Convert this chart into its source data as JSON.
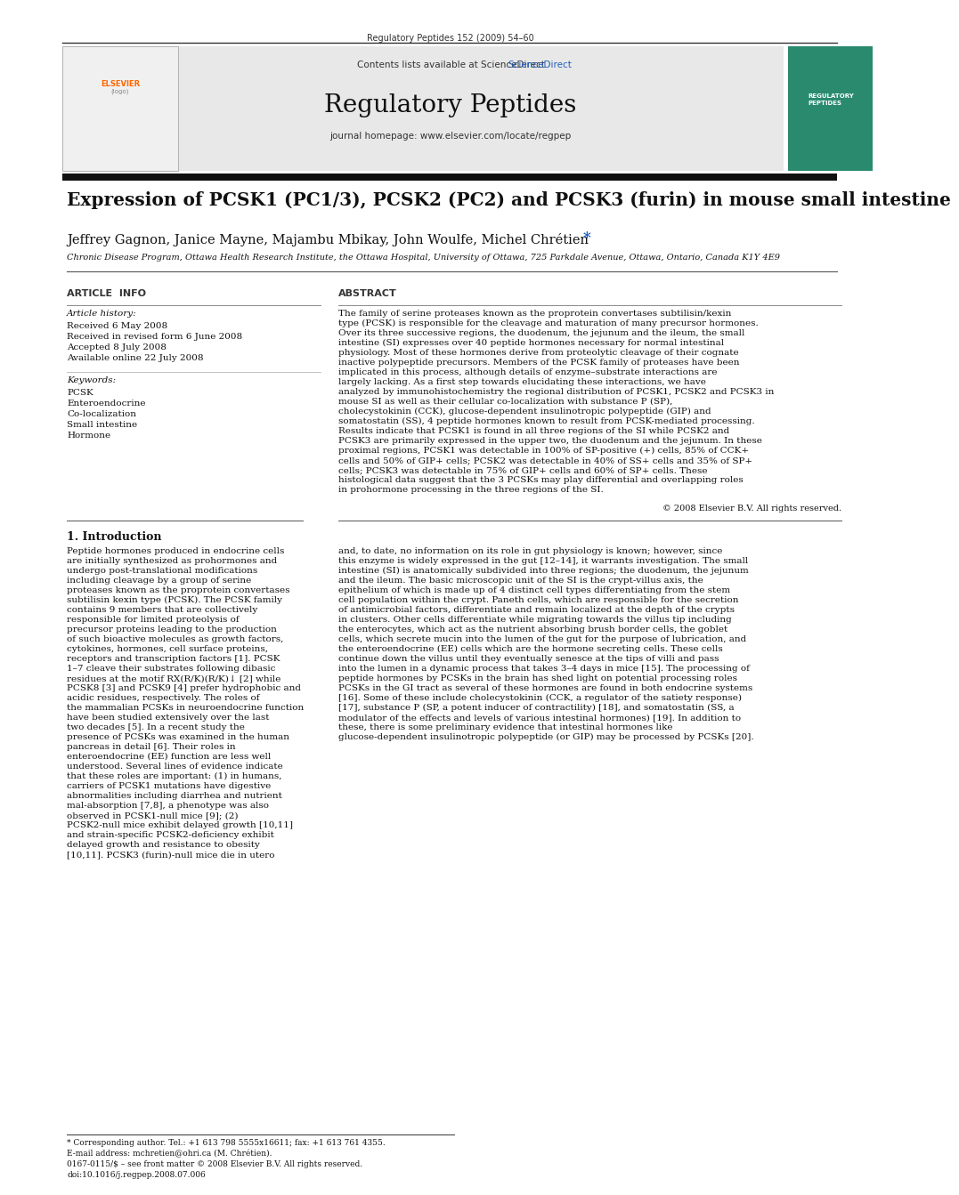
{
  "page_bg": "#ffffff",
  "header_journal": "Regulatory Peptides 152 (2009) 54–60",
  "header_journal_color": "#000000",
  "header_bg": "#e8e8e8",
  "contents_text": "Contents lists available at ",
  "sciencedirect_text": "ScienceDirect",
  "sciencedirect_color": "#2060c0",
  "journal_name": "Regulatory Peptides",
  "journal_homepage": "journal homepage: www.elsevier.com/locate/regpep",
  "title": "Expression of PCSK1 (PC1/3), PCSK2 (PC2) and PCSK3 (furin) in mouse small intestine",
  "authors": "Jeffrey Gagnon, Janice Mayne, Majambu Mbikay, John Woulfe, Michel Chrétien",
  "asterisk_color": "#2060c0",
  "affiliation": "Chronic Disease Program, Ottawa Health Research Institute, the Ottawa Hospital, University of Ottawa, 725 Parkdale Avenue, Ottawa, Ontario, Canada K1Y 4E9",
  "article_info_header": "ARTICLE  INFO",
  "abstract_header": "ABSTRACT",
  "article_history_label": "Article history:",
  "received": "Received 6 May 2008",
  "revised": "Received in revised form 6 June 2008",
  "accepted": "Accepted 8 July 2008",
  "available": "Available online 22 July 2008",
  "keywords_label": "Keywords:",
  "keywords": [
    "PCSK",
    "Enteroendocrine",
    "Co-localization",
    "Small intestine",
    "Hormone"
  ],
  "abstract_text": "The family of serine proteases known as the proprotein convertases subtilisin/kexin type (PCSK) is responsible for the cleavage and maturation of many precursor hormones. Over its three successive regions, the duodenum, the jejunum and the ileum, the small intestine (SI) expresses over 40 peptide hormones necessary for normal intestinal physiology. Most of these hormones derive from proteolytic cleavage of their cognate inactive polypeptide precursors. Members of the PCSK family of proteases have been implicated in this process, although details of enzyme–substrate interactions are largely lacking. As a first step towards elucidating these interactions, we have analyzed by immunohistochemistry the regional distribution of PCSK1, PCSK2 and PCSK3 in mouse SI as well as their cellular co-localization with substance P (SP), cholecystokinin (CCK), glucose-dependent insulinotropic polypeptide (GIP) and somatostatin (SS), 4 peptide hormones known to result from PCSK-mediated processing. Results indicate that PCSK1 is found in all three regions of the SI while PCSK2 and PCSK3 are primarily expressed in the upper two, the duodenum and the jejunum. In these proximal regions, PCSK1 was detectable in 100% of SP-positive (+) cells, 85% of CCK+ cells and 50% of GIP+ cells; PCSK2 was detectable in 40% of SS+ cells and 35% of SP+ cells; PCSK3 was detectable in 75% of GIP+ cells and 60% of SP+ cells. These histological data suggest that the 3 PCSKs may play differential and overlapping roles in prohormone processing in the three regions of the SI.",
  "copyright": "© 2008 Elsevier B.V. All rights reserved.",
  "intro_header": "1. Introduction",
  "intro_col1": "Peptide hormones produced in endocrine cells are initially synthesized as prohormones and undergo post-translational modifications including cleavage by a group of serine proteases known as the proprotein convertases subtilisin kexin type (PCSK). The PCSK family contains 9 members that are collectively responsible for limited proteolysis of precursor proteins leading to the production of such bioactive molecules as growth factors, cytokines, hormones, cell surface proteins, receptors and transcription factors [1]. PCSK 1–7 cleave their substrates following dibasic residues at the motif RX(R/K)(R/K)↓ [2] while PCSK8 [3] and PCSK9 [4] prefer hydrophobic and acidic residues, respectively. The roles of the mammalian PCSKs in neuroendocrine function have been studied extensively over the last two decades [5].\n    In a recent study the presence of PCSKs was examined in the human pancreas in detail [6]. Their roles in enteroendocrine (EE) function are less well understood. Several lines of evidence indicate that these roles are important: (1) in humans, carriers of PCSK1 mutations have digestive abnormalities including diarrhea and nutrient mal-absorption [7,8], a phenotype was also observed in PCSK1-null mice [9]; (2) PCSK2-null mice exhibit delayed growth [10,11] and strain-specific PCSK2-deficiency exhibit delayed growth and resistance to obesity [10,11]. PCSK3 (furin)-null mice die in utero",
  "intro_col2": "and, to date, no information on its role in gut physiology is known; however, since this enzyme is widely expressed in the gut [12–14], it warrants investigation.\n    The small intestine (SI) is anatomically subdivided into three regions; the duodenum, the jejunum and the ileum. The basic microscopic unit of the SI is the crypt-villus axis, the epithelium of which is made up of 4 distinct cell types differentiating from the stem cell population within the crypt. Paneth cells, which are responsible for the secretion of antimicrobial factors, differentiate and remain localized at the depth of the crypts in clusters. Other cells differentiate while migrating towards the villus tip including the enterocytes, which act as the nutrient absorbing brush border cells, the goblet cells, which secrete mucin into the lumen of the gut for the purpose of lubrication, and the enteroendocrine (EE) cells which are the hormone secreting cells. These cells continue down the villus until they eventually senesce at the tips of villi and pass into the lumen in a dynamic process that takes 3–4 days in mice [15].\n    The processing of peptide hormones by PCSKs in the brain has shed light on potential processing roles PCSKs in the GI tract as several of these hormones are found in both endocrine systems [16]. Some of these include cholecystokinin (CCK, a regulator of the satiety response) [17], substance P (SP, a potent inducer of contractility) [18], and somatostatin (SS, a modulator of the effects and levels of various intestinal hormones) [19]. In addition to these, there is some preliminary evidence that intestinal hormones like glucose-dependent insulinotropic polypeptide (or GIP) may be processed by PCSKs [20].",
  "footnote1": "* Corresponding author. Tel.: +1 613 798 5555x16611; fax: +1 613 761 4355.",
  "footnote2": "E-mail address: mchretien@ohri.ca (M. Chrétien).",
  "footnote3": "0167-0115/$ – see front matter © 2008 Elsevier B.V. All rights reserved.",
  "footnote4": "doi:10.1016/j.regpep.2008.07.006"
}
